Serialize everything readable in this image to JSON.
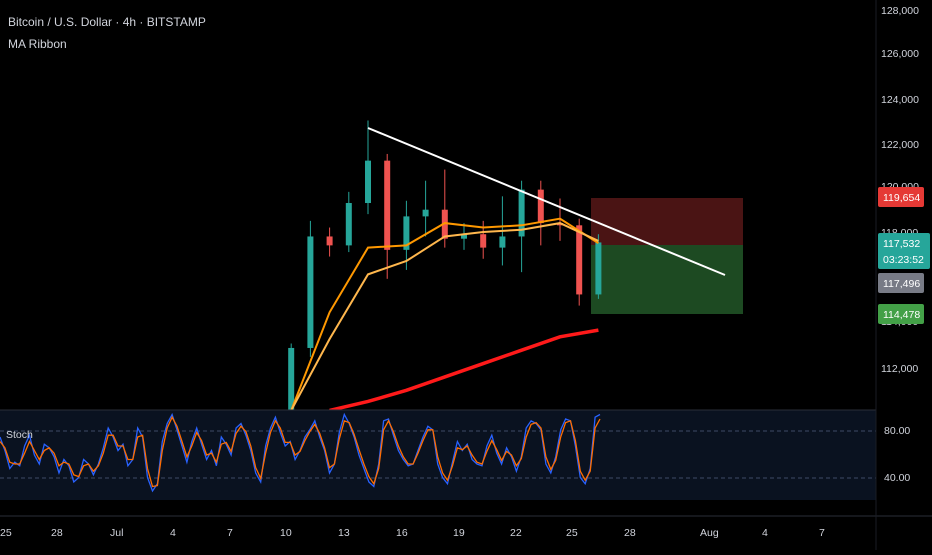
{
  "header": {
    "symbol_line": "Bitcoin / U.S. Dollar · 4h · BITSTAMP",
    "indicator": "MA Ribbon"
  },
  "price_axis": {
    "labels": [
      "128,000",
      "126,000",
      "124,000",
      "122,000",
      "120,000",
      "118,000",
      "114,000",
      "112,000"
    ],
    "tags": {
      "stop": "119,654",
      "last": "117,532",
      "countdown": "03:23:52",
      "ask": "117,496",
      "target": "114,478"
    }
  },
  "stoch": {
    "label": "Stoch",
    "axis_labels": [
      "80.00",
      "40.00"
    ]
  },
  "time_axis": {
    "labels": [
      "25",
      "28",
      "Jul",
      "4",
      "7",
      "10",
      "13",
      "16",
      "19",
      "22",
      "25",
      "28",
      "Aug",
      "4",
      "7"
    ]
  },
  "colors": {
    "background": "#000000",
    "up_candle": "#26a69a",
    "down_candle": "#ef5350",
    "ma_fast": "#ff9800",
    "ma_slow": "#ffb74d",
    "ma_long": "#ff1a1a",
    "trendline": "#ffffff",
    "stop_zone": "#4a1414",
    "target_zone": "#1d4a22",
    "stop_tag": "#e53935",
    "last_tag": "#26a69a",
    "ask_tag": "#787b86",
    "target_tag": "#43a047",
    "stoch_k": "#2962ff",
    "stoch_d": "#ff6d00"
  },
  "chart_data": {
    "type": "candlestick",
    "title": "Bitcoin / U.S. Dollar · 4h · BITSTAMP",
    "price_ylim": [
      110000,
      128600
    ],
    "stoch_ylim": [
      0,
      100
    ],
    "candles": [
      [
        "Jul 10",
        110000,
        113000,
        109500,
        112800
      ],
      [
        "Jul 11",
        112800,
        118500,
        112400,
        117800
      ],
      [
        "Jul 12",
        117800,
        118200,
        116900,
        117400
      ],
      [
        "Jul 13",
        117400,
        119800,
        117100,
        119300
      ],
      [
        "Jul 14",
        119300,
        123000,
        118800,
        121200
      ],
      [
        "Jul 15",
        121200,
        121500,
        115900,
        117200
      ],
      [
        "Jul 16",
        117200,
        119400,
        116300,
        118700
      ],
      [
        "Jul 17",
        118700,
        120300,
        117800,
        119000
      ],
      [
        "Jul 18",
        119000,
        120800,
        117300,
        117700
      ],
      [
        "Jul 19",
        117700,
        118400,
        117200,
        117900
      ],
      [
        "Jul 20",
        117900,
        118500,
        116800,
        117300
      ],
      [
        "Jul 21",
        117300,
        119600,
        116500,
        117800
      ],
      [
        "Jul 22",
        117800,
        120300,
        116200,
        119900
      ],
      [
        "Jul 23",
        119900,
        120300,
        117400,
        118400
      ],
      [
        "Jul 24",
        118400,
        119500,
        117600,
        118300
      ],
      [
        "Jul 25",
        118300,
        118600,
        114700,
        115200
      ],
      [
        "Jul 26",
        115200,
        117900,
        115000,
        117532
      ]
    ],
    "ma_ribbon": [
      {
        "x": [
          "Jul 10",
          "Jul 12",
          "Jul 14",
          "Jul 16",
          "Jul 18",
          "Jul 20",
          "Jul 22",
          "Jul 24",
          "Jul 26"
        ],
        "values": [
          110000,
          114400,
          117300,
          117400,
          118400,
          118200,
          118300,
          118600,
          117500
        ]
      },
      {
        "x": [
          "Jul 10",
          "Jul 12",
          "Jul 14",
          "Jul 16",
          "Jul 18",
          "Jul 20",
          "Jul 22",
          "Jul 24",
          "Jul 26"
        ],
        "values": [
          110000,
          113200,
          116100,
          116700,
          117800,
          118000,
          118100,
          118400,
          117600
        ]
      },
      {
        "x": [
          "Jul 12",
          "Jul 14",
          "Jul 16",
          "Jul 18",
          "Jul 20",
          "Jul 22",
          "Jul 24",
          "Jul 26"
        ],
        "values": [
          110000,
          110400,
          110900,
          111500,
          112100,
          112700,
          113300,
          113600
        ]
      }
    ],
    "trendline": {
      "x": [
        "Jul 14",
        "Aug 2"
      ],
      "values": [
        122800,
        115900
      ]
    },
    "short_position": {
      "entry": 117496,
      "stop": 119654,
      "target": 114478
    },
    "stochastic": {
      "levels": [
        80,
        40
      ],
      "k": [
        70,
        55,
        35,
        42,
        38,
        60,
        72,
        50,
        40,
        62,
        58,
        48,
        30,
        45,
        38,
        20,
        25,
        45,
        40,
        28,
        40,
        58,
        80,
        70,
        55,
        62,
        38,
        45,
        80,
        70,
        25,
        10,
        18,
        65,
        85,
        95,
        78,
        60,
        42,
        65,
        80,
        62,
        45,
        55,
        38,
        70,
        62,
        50,
        80,
        85,
        72,
        55,
        30,
        20,
        60,
        80,
        92,
        75,
        60,
        65,
        45,
        55,
        70,
        78,
        88,
        70,
        55,
        30,
        40,
        75,
        95,
        85,
        70,
        50,
        35,
        20,
        15,
        40,
        88,
        90,
        72,
        55,
        45,
        38,
        40,
        55,
        70,
        82,
        78,
        40,
        25,
        18,
        42,
        65,
        55,
        62,
        45,
        40,
        38,
        60,
        72,
        52,
        40,
        58,
        48,
        32,
        48,
        80,
        88,
        85,
        78,
        40,
        30,
        48,
        78,
        90,
        88,
        60,
        25,
        18,
        35,
        92,
        95
      ],
      "d": [
        65,
        58,
        42,
        40,
        40,
        52,
        65,
        55,
        45,
        55,
        58,
        52,
        38,
        42,
        40,
        28,
        26,
        38,
        40,
        32,
        38,
        52,
        72,
        72,
        60,
        60,
        45,
        45,
        70,
        72,
        35,
        15,
        16,
        55,
        80,
        92,
        82,
        65,
        48,
        60,
        75,
        66,
        50,
        52,
        42,
        62,
        64,
        54,
        74,
        82,
        76,
        60,
        36,
        24,
        52,
        75,
        88,
        80,
        64,
        64,
        50,
        54,
        66,
        76,
        84,
        74,
        58,
        36,
        40,
        68,
        88,
        86,
        73,
        56,
        40,
        26,
        18,
        35,
        78,
        88,
        76,
        60,
        48,
        40,
        40,
        52,
        66,
        78,
        78,
        48,
        30,
        22,
        38,
        58,
        56,
        60,
        50,
        42,
        40,
        54,
        66,
        56,
        44,
        54,
        50,
        38,
        46,
        70,
        84,
        86,
        80,
        48,
        34,
        44,
        70,
        86,
        88,
        66,
        32,
        22,
        32,
        80,
        90
      ]
    }
  }
}
